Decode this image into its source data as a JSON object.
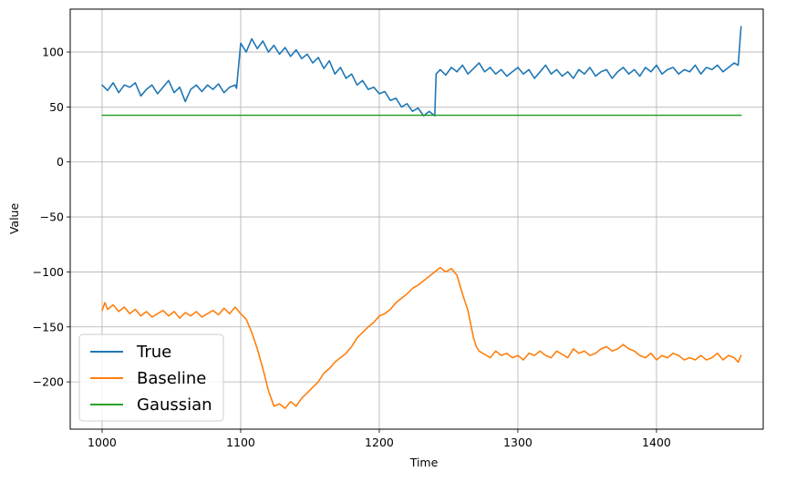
{
  "chart_data": {
    "type": "line",
    "title": "",
    "xlabel": "Time",
    "ylabel": "Value",
    "xlim": [
      977,
      1477
    ],
    "ylim": [
      -243,
      139
    ],
    "xticks": [
      1000,
      1100,
      1200,
      1300,
      1400
    ],
    "yticks": [
      -200,
      -150,
      -100,
      -50,
      0,
      50,
      100
    ],
    "ytick_labels": [
      "−200",
      "−150",
      "−100",
      "−50",
      "0",
      "50",
      "100"
    ],
    "grid": true,
    "legend_position": "lower-left",
    "series": [
      {
        "name": "True",
        "color": "#1f77b4",
        "x": [
          1000,
          1004,
          1008,
          1012,
          1016,
          1020,
          1024,
          1028,
          1032,
          1036,
          1040,
          1044,
          1048,
          1052,
          1056,
          1060,
          1064,
          1068,
          1072,
          1076,
          1080,
          1084,
          1088,
          1092,
          1096,
          1097,
          1100,
          1104,
          1108,
          1112,
          1116,
          1120,
          1124,
          1128,
          1132,
          1136,
          1140,
          1144,
          1148,
          1152,
          1156,
          1160,
          1164,
          1168,
          1172,
          1176,
          1180,
          1184,
          1188,
          1192,
          1196,
          1200,
          1204,
          1208,
          1212,
          1216,
          1220,
          1224,
          1228,
          1232,
          1236,
          1240,
          1241,
          1244,
          1248,
          1252,
          1256,
          1260,
          1264,
          1268,
          1272,
          1276,
          1280,
          1284,
          1288,
          1292,
          1296,
          1300,
          1304,
          1308,
          1312,
          1316,
          1320,
          1324,
          1328,
          1332,
          1336,
          1340,
          1344,
          1348,
          1352,
          1356,
          1360,
          1364,
          1368,
          1372,
          1376,
          1380,
          1384,
          1388,
          1392,
          1396,
          1400,
          1404,
          1408,
          1412,
          1416,
          1420,
          1424,
          1428,
          1432,
          1436,
          1440,
          1444,
          1448,
          1452,
          1456,
          1459,
          1461
        ],
        "values": [
          70,
          65,
          72,
          63,
          70,
          68,
          72,
          60,
          66,
          70,
          62,
          68,
          74,
          63,
          68,
          55,
          66,
          70,
          64,
          70,
          66,
          71,
          63,
          68,
          70,
          67,
          108,
          100,
          112,
          103,
          110,
          100,
          106,
          98,
          104,
          96,
          102,
          94,
          98,
          90,
          95,
          85,
          92,
          80,
          86,
          76,
          80,
          70,
          74,
          66,
          68,
          62,
          64,
          56,
          58,
          50,
          53,
          46,
          49,
          42,
          46,
          42,
          80,
          84,
          79,
          86,
          82,
          88,
          80,
          85,
          90,
          82,
          86,
          80,
          84,
          78,
          82,
          86,
          80,
          84,
          76,
          82,
          88,
          80,
          84,
          78,
          82,
          76,
          84,
          80,
          86,
          78,
          82,
          84,
          76,
          82,
          86,
          80,
          84,
          78,
          86,
          82,
          88,
          80,
          84,
          86,
          80,
          84,
          82,
          88,
          80,
          86,
          84,
          88,
          82,
          86,
          90,
          88,
          123
        ]
      },
      {
        "name": "Baseline",
        "color": "#ff7f0e",
        "x": [
          1000,
          1002,
          1004,
          1008,
          1012,
          1016,
          1020,
          1024,
          1028,
          1032,
          1036,
          1040,
          1044,
          1048,
          1052,
          1056,
          1060,
          1064,
          1068,
          1072,
          1076,
          1080,
          1084,
          1088,
          1092,
          1096,
          1100,
          1104,
          1108,
          1112,
          1116,
          1120,
          1124,
          1128,
          1132,
          1136,
          1140,
          1144,
          1148,
          1152,
          1156,
          1160,
          1164,
          1168,
          1172,
          1176,
          1180,
          1184,
          1188,
          1192,
          1196,
          1200,
          1204,
          1208,
          1212,
          1216,
          1220,
          1224,
          1228,
          1232,
          1236,
          1240,
          1244,
          1248,
          1252,
          1256,
          1260,
          1264,
          1268,
          1270,
          1272,
          1276,
          1280,
          1284,
          1288,
          1292,
          1296,
          1300,
          1304,
          1308,
          1312,
          1316,
          1320,
          1324,
          1328,
          1332,
          1336,
          1340,
          1344,
          1348,
          1352,
          1356,
          1360,
          1364,
          1368,
          1372,
          1376,
          1380,
          1384,
          1388,
          1392,
          1396,
          1400,
          1404,
          1408,
          1412,
          1416,
          1420,
          1424,
          1428,
          1432,
          1436,
          1440,
          1444,
          1448,
          1452,
          1456,
          1459,
          1461
        ],
        "values": [
          -135,
          -128,
          -134,
          -130,
          -136,
          -132,
          -138,
          -134,
          -140,
          -136,
          -141,
          -138,
          -135,
          -140,
          -136,
          -142,
          -137,
          -140,
          -136,
          -141,
          -138,
          -135,
          -139,
          -133,
          -138,
          -132,
          -138,
          -143,
          -155,
          -170,
          -188,
          -208,
          -222,
          -220,
          -224,
          -218,
          -222,
          -215,
          -210,
          -205,
          -200,
          -192,
          -188,
          -182,
          -178,
          -174,
          -168,
          -160,
          -155,
          -150,
          -146,
          -140,
          -138,
          -134,
          -128,
          -124,
          -120,
          -115,
          -112,
          -108,
          -104,
          -100,
          -96,
          -100,
          -97,
          -103,
          -120,
          -135,
          -160,
          -168,
          -172,
          -175,
          -178,
          -172,
          -176,
          -174,
          -178,
          -176,
          -180,
          -174,
          -176,
          -172,
          -176,
          -178,
          -172,
          -175,
          -178,
          -170,
          -174,
          -172,
          -176,
          -174,
          -170,
          -168,
          -172,
          -170,
          -166,
          -170,
          -172,
          -176,
          -178,
          -174,
          -180,
          -176,
          -178,
          -174,
          -176,
          -180,
          -178,
          -180,
          -176,
          -180,
          -178,
          -174,
          -180,
          -176,
          -178,
          -182,
          -176
        ]
      },
      {
        "name": "Gaussian",
        "color": "#2ca02c",
        "x": [
          1000,
          1461
        ],
        "values": [
          42.5,
          42.5
        ]
      }
    ]
  }
}
